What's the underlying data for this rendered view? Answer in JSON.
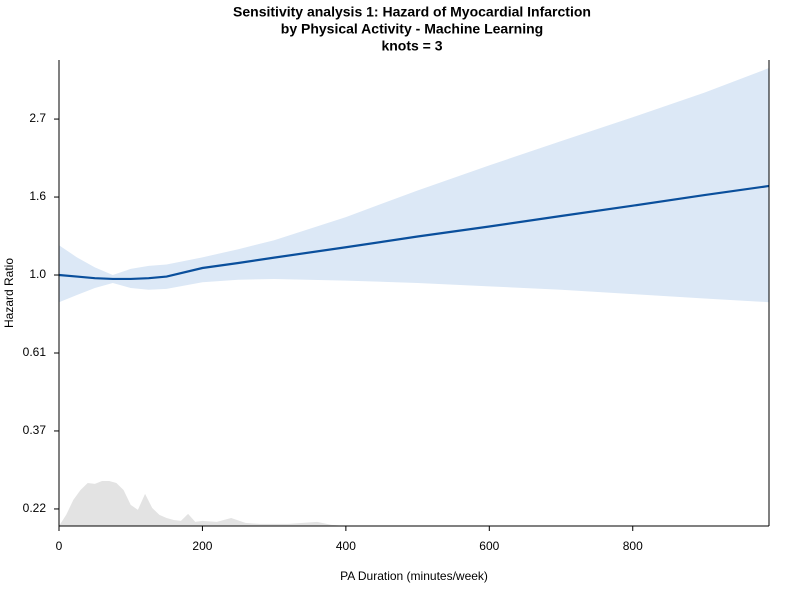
{
  "chart_data": {
    "type": "line",
    "title": "Sensitivity analysis 1: Hazard of Myocardial Infarction",
    "subtitle": "by Physical Activity - Machine Learning",
    "annotation": "knots = 3",
    "xlabel": "PA Duration (minutes/week)",
    "ylabel": "Hazard Ratio",
    "x": [
      0,
      25,
      50,
      75,
      100,
      125,
      150,
      200,
      250,
      300,
      400,
      500,
      600,
      700,
      800,
      900,
      990
    ],
    "values": [
      1.0,
      0.99,
      0.98,
      0.975,
      0.975,
      0.98,
      0.99,
      1.046,
      1.08,
      1.118,
      1.195,
      1.28,
      1.365,
      1.46,
      1.56,
      1.67,
      1.77
    ],
    "lower": [
      0.84,
      0.88,
      0.92,
      0.95,
      0.92,
      0.91,
      0.915,
      0.955,
      0.97,
      0.975,
      0.965,
      0.95,
      0.93,
      0.91,
      0.885,
      0.86,
      0.84
    ],
    "upper": [
      1.21,
      1.12,
      1.05,
      1.0,
      1.04,
      1.06,
      1.07,
      1.12,
      1.18,
      1.25,
      1.45,
      1.72,
      2.02,
      2.36,
      2.75,
      3.22,
      3.77
    ],
    "color": "#0a4f9c",
    "band_color": "#dce8f6",
    "density_x": [
      0,
      10,
      20,
      30,
      40,
      50,
      60,
      70,
      80,
      90,
      100,
      110,
      120,
      130,
      140,
      150,
      160,
      170,
      180,
      190,
      200,
      220,
      240,
      260,
      280,
      300,
      320,
      340,
      360,
      380,
      400
    ],
    "density": [
      0.2,
      0.2148,
      0.2364,
      0.252,
      0.2636,
      0.262,
      0.267,
      0.267,
      0.2636,
      0.252,
      0.229,
      0.2218,
      0.2457,
      0.2245,
      0.2148,
      0.2106,
      0.2079,
      0.2066,
      0.2161,
      0.2053,
      0.2066,
      0.2053,
      0.2106,
      0.204,
      0.2027,
      0.2027,
      0.2027,
      0.204,
      0.2053,
      0.2014,
      0.2
    ],
    "density_color": "#e3e3e3",
    "xlim": [
      0,
      990
    ],
    "ylim": [
      0.2,
      3.97
    ],
    "ylog": true,
    "xticks": [
      0,
      200,
      400,
      600,
      800
    ],
    "yticks": [
      {
        "value": 0.2231,
        "label": "0.22"
      },
      {
        "value": 0.3679,
        "label": "0.37"
      },
      {
        "value": 0.6065,
        "label": "0.61"
      },
      {
        "value": 1,
        "label": "1.0"
      },
      {
        "value": 1.6487,
        "label": "1.6"
      },
      {
        "value": 2.7183,
        "label": "2.7"
      }
    ]
  }
}
